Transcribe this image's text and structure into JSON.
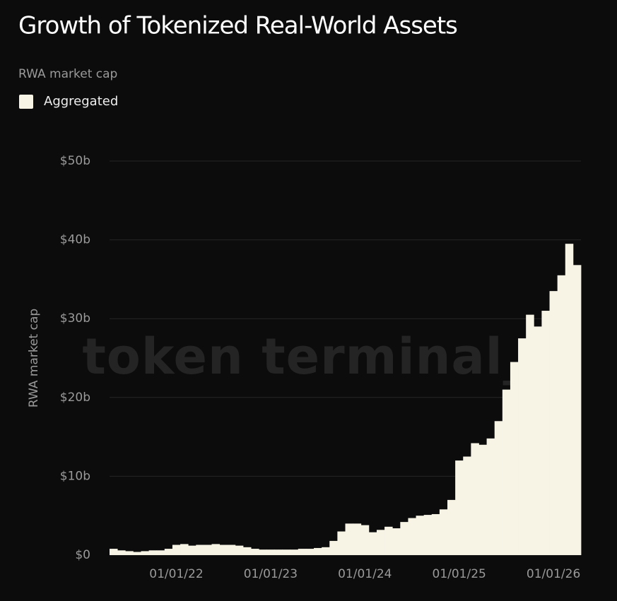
{
  "chart_data": {
    "type": "bar",
    "title": "Growth of Tokenized Real-World Assets",
    "subtitle": "RWA market cap",
    "y_label": "RWA market cap",
    "watermark": "token terminal_",
    "categories": [
      null,
      null,
      null,
      null,
      null,
      null,
      null,
      null,
      "01/01/22",
      null,
      null,
      null,
      null,
      null,
      null,
      null,
      null,
      null,
      null,
      null,
      "01/01/23",
      null,
      null,
      null,
      null,
      null,
      null,
      null,
      null,
      null,
      null,
      null,
      "01/01/24",
      null,
      null,
      null,
      null,
      null,
      null,
      null,
      null,
      null,
      null,
      null,
      "01/01/25",
      null,
      null,
      null,
      null,
      null,
      null,
      null,
      null,
      null,
      null,
      null,
      "01/01/26",
      null,
      null,
      null
    ],
    "series": [
      {
        "name": "Aggregated",
        "color": "#f7f4e6",
        "values": [
          0.8,
          0.6,
          0.5,
          0.4,
          0.5,
          0.6,
          0.6,
          0.8,
          1.3,
          1.4,
          1.2,
          1.3,
          1.3,
          1.4,
          1.3,
          1.3,
          1.2,
          1.0,
          0.8,
          0.7,
          0.7,
          0.7,
          0.7,
          0.7,
          0.8,
          0.8,
          0.9,
          1.0,
          1.8,
          3.0,
          4.0,
          4.0,
          3.8,
          2.9,
          3.2,
          3.6,
          3.4,
          4.2,
          4.7,
          5.0,
          5.1,
          5.2,
          5.8,
          7.0,
          12.0,
          12.5,
          14.2,
          14.0,
          14.8,
          17.0,
          21.0,
          24.5,
          27.5,
          30.5,
          29.0,
          31.0,
          33.5,
          35.5,
          39.5,
          36.8
        ]
      }
    ],
    "ylim": [
      0,
      50
    ],
    "yticks": [
      {
        "value": 0,
        "label": "$0"
      },
      {
        "value": 10,
        "label": "$10b"
      },
      {
        "value": 20,
        "label": "$20b"
      },
      {
        "value": 30,
        "label": "$30b"
      },
      {
        "value": 40,
        "label": "$40b"
      },
      {
        "value": 50,
        "label": "$50b"
      }
    ],
    "grid": true
  }
}
